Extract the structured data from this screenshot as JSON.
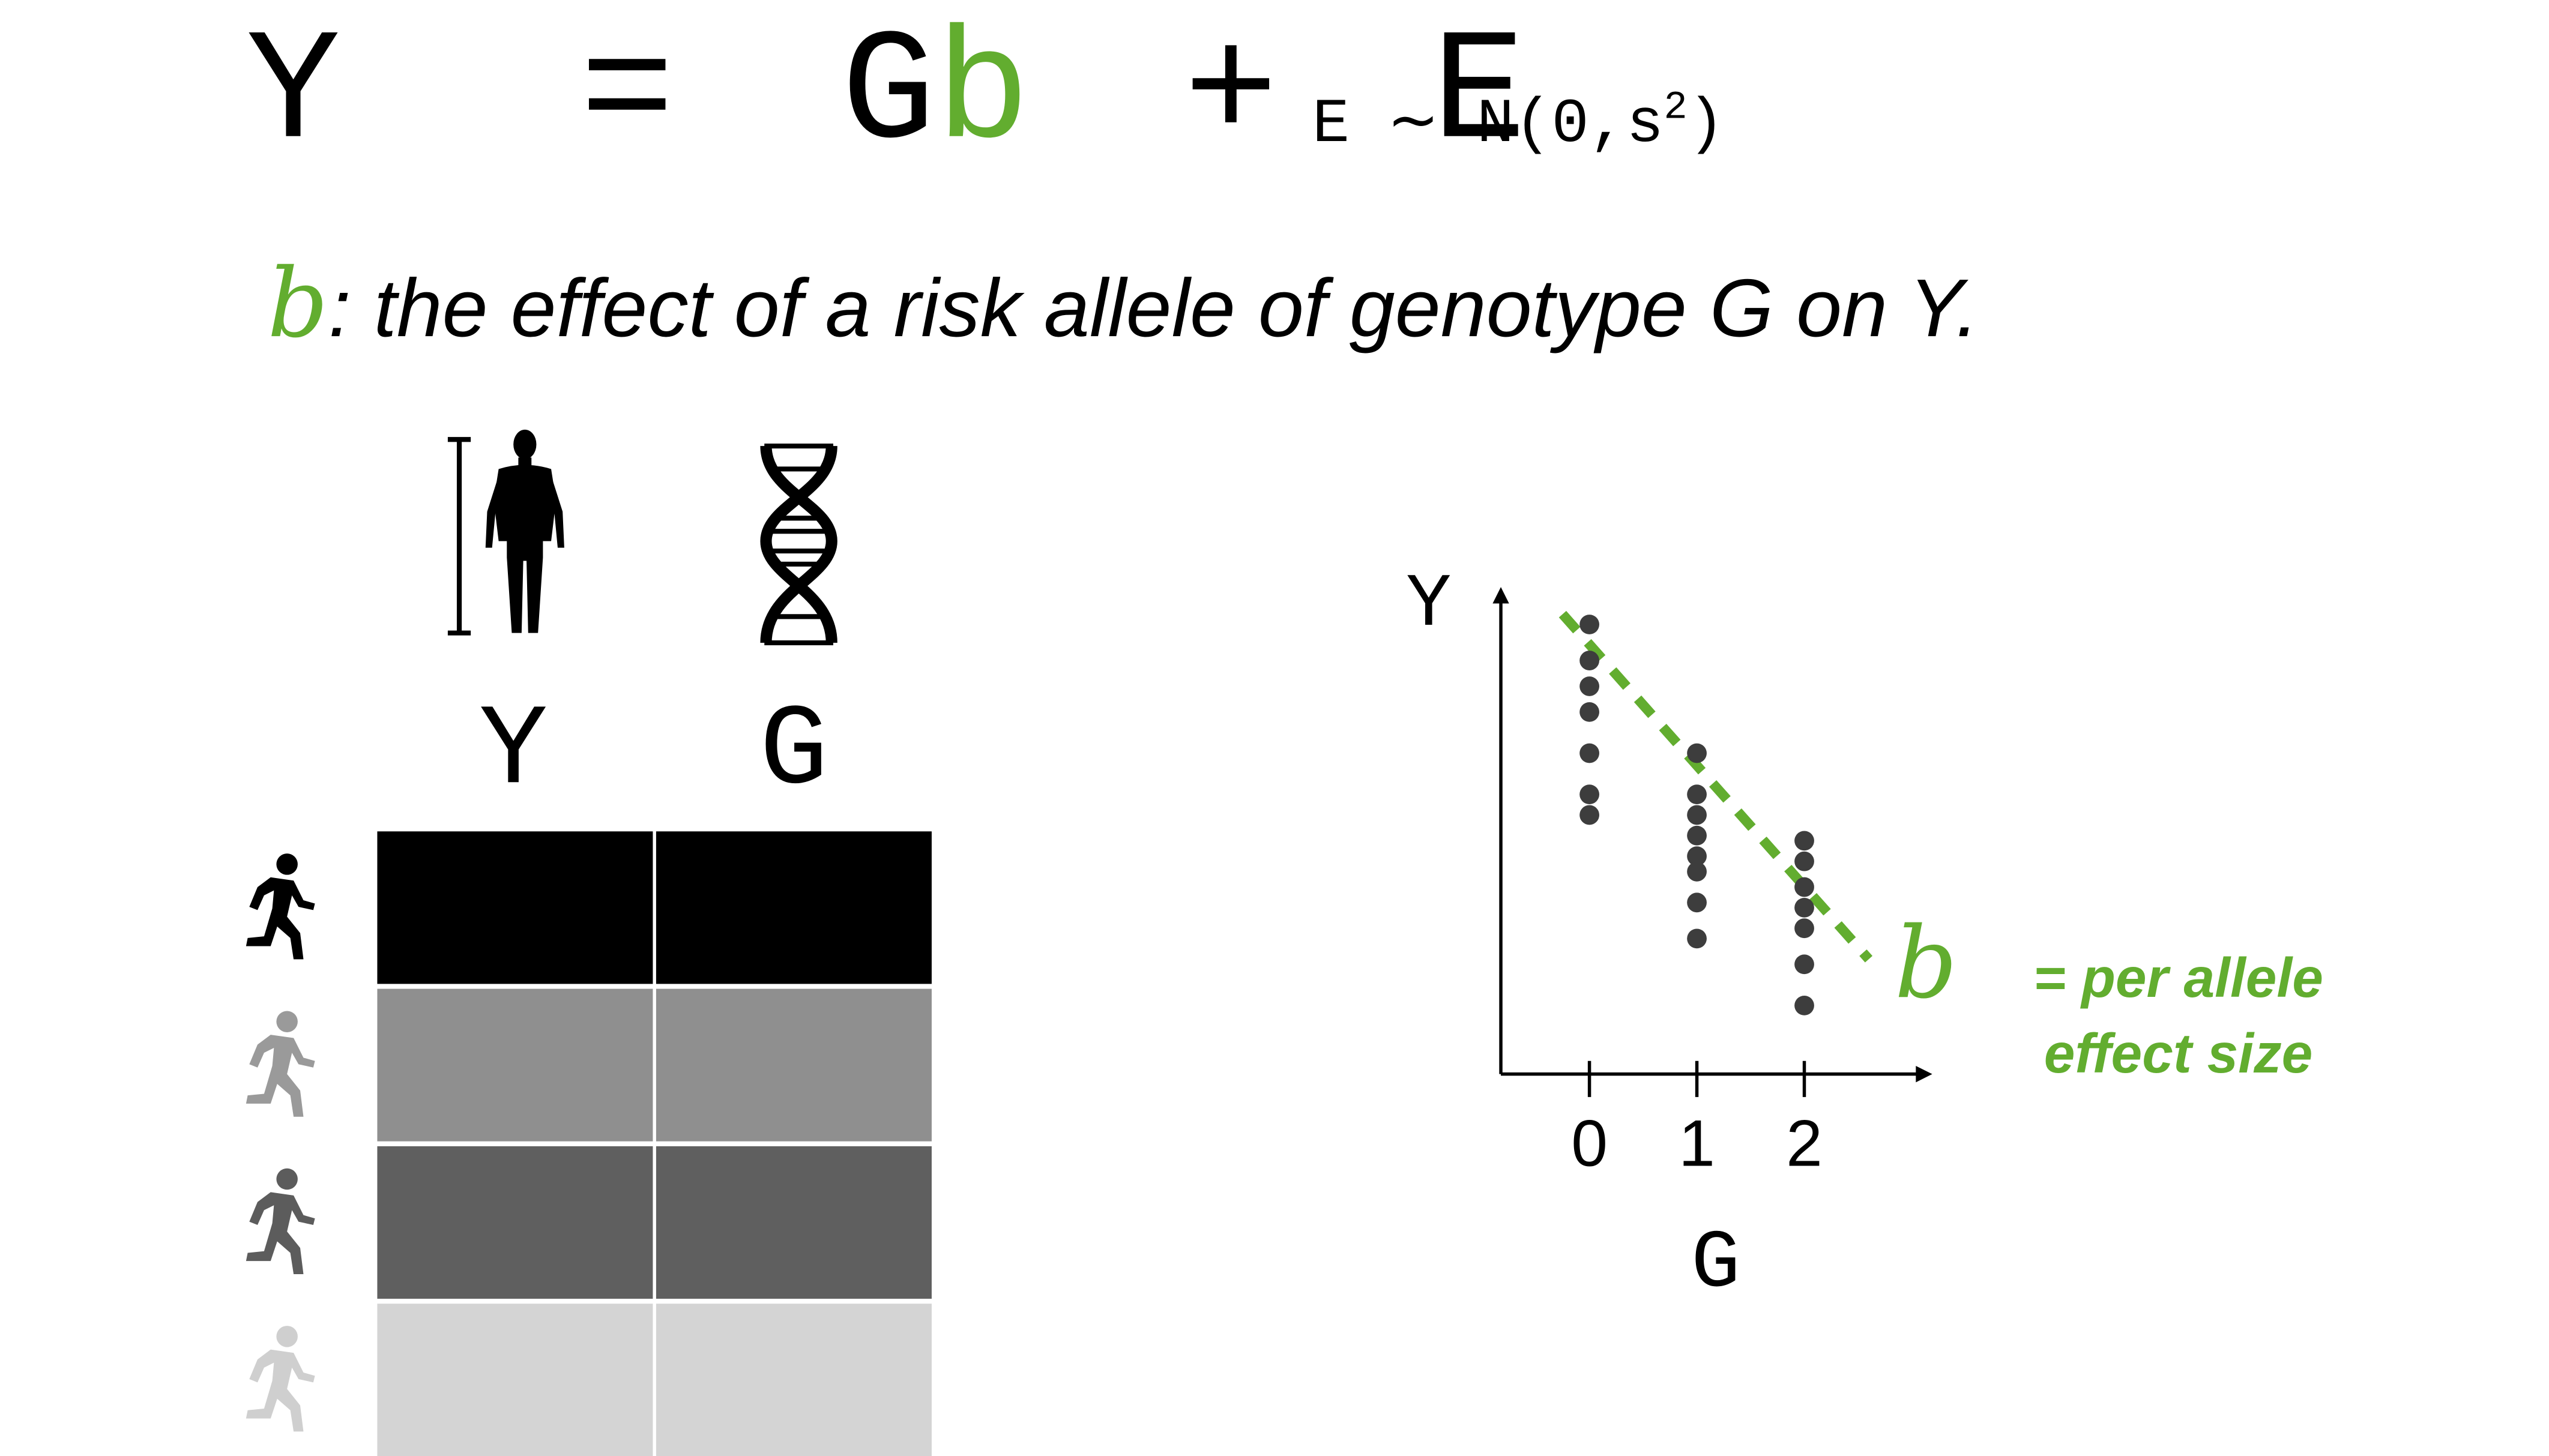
{
  "equation": {
    "y": "Y",
    "equals": "=",
    "g": "G",
    "b": "b",
    "plus": "+",
    "e": "E",
    "noise_lhs": "E",
    "noise_tilde": "~",
    "noise_rhs": "N(0,s",
    "noise_exp": "2",
    "noise_close": ")"
  },
  "definition": {
    "symbol": "b",
    "text": ": the effect of a risk allele of genotype G on Y."
  },
  "table": {
    "columns": [
      "Y",
      "G"
    ],
    "row_colors": [
      "#000000",
      "#8f8f8f",
      "#5f5f5f",
      "#d4d4d4"
    ],
    "runner_colors": [
      "#000000",
      "#9a9a9a",
      "#5c5c5c",
      "#cfcfcf"
    ]
  },
  "icons": {
    "height_bar": "height-bar-icon",
    "person": "human-body-icon",
    "dna": "dna-helix-icon",
    "runner": "running-person-icon"
  },
  "colors": {
    "accent": "#62ad2f",
    "dot": "#3d3d3d"
  },
  "chart_data": {
    "type": "scatter",
    "xlabel": "G",
    "ylabel": "Y",
    "x_ticks": [
      "0",
      "1",
      "2"
    ],
    "xlim": [
      -0.6,
      3.1
    ],
    "ylim": [
      0,
      10
    ],
    "points": [
      {
        "x": 0,
        "y": 8.7
      },
      {
        "x": 0,
        "y": 8.0
      },
      {
        "x": 0,
        "y": 7.5
      },
      {
        "x": 0,
        "y": 7.0
      },
      {
        "x": 0,
        "y": 6.2
      },
      {
        "x": 0,
        "y": 5.4
      },
      {
        "x": 0,
        "y": 5.0
      },
      {
        "x": 1,
        "y": 6.2
      },
      {
        "x": 1,
        "y": 5.4
      },
      {
        "x": 1,
        "y": 5.0
      },
      {
        "x": 1,
        "y": 4.6
      },
      {
        "x": 1,
        "y": 4.2
      },
      {
        "x": 1,
        "y": 3.9
      },
      {
        "x": 1,
        "y": 3.3
      },
      {
        "x": 1,
        "y": 2.6
      },
      {
        "x": 2,
        "y": 4.5
      },
      {
        "x": 2,
        "y": 4.1
      },
      {
        "x": 2,
        "y": 3.6
      },
      {
        "x": 2,
        "y": 3.2
      },
      {
        "x": 2,
        "y": 2.8
      },
      {
        "x": 2,
        "y": 2.1
      },
      {
        "x": 2,
        "y": 1.3
      }
    ],
    "fit_line": {
      "x0": -0.25,
      "y0": 8.9,
      "x1": 2.6,
      "y1": 2.2
    },
    "annotation_symbol": "b",
    "annotation_text": [
      "= per allele",
      "effect size"
    ]
  }
}
